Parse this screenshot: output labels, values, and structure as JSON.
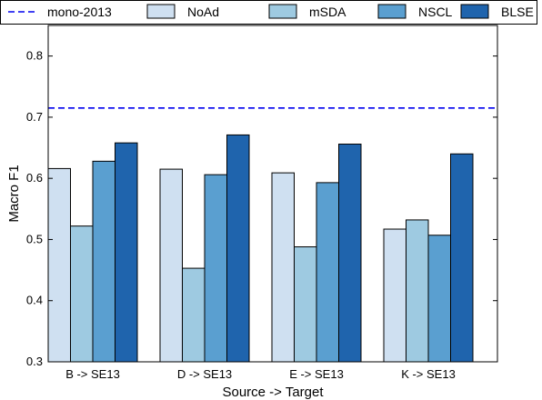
{
  "chart_data": {
    "type": "bar",
    "xlabel": "Source -> Target",
    "ylabel": "Macro F1",
    "ylim": [
      0.3,
      0.85
    ],
    "yticks": [
      "0.3",
      "0.4",
      "0.5",
      "0.6",
      "0.7",
      "0.8"
    ],
    "grid": false,
    "legend_position": "top",
    "categories": [
      "B -> SE13",
      "D -> SE13",
      "E -> SE13",
      "K -> SE13"
    ],
    "reference_line": {
      "name": "mono-2013",
      "value": 0.715,
      "color": "#0000ee",
      "style": "dashed"
    },
    "series": [
      {
        "name": "NoAd",
        "color": "#cfe0f1",
        "values": [
          0.616,
          0.615,
          0.609,
          0.517
        ]
      },
      {
        "name": "mSDA",
        "color": "#9ecae1",
        "values": [
          0.522,
          0.453,
          0.488,
          0.532
        ]
      },
      {
        "name": "NSCL",
        "color": "#5a9fd0",
        "values": [
          0.628,
          0.606,
          0.593,
          0.507
        ]
      },
      {
        "name": "BLSE",
        "color": "#1f64ad",
        "values": [
          0.658,
          0.671,
          0.656,
          0.64
        ]
      }
    ]
  }
}
